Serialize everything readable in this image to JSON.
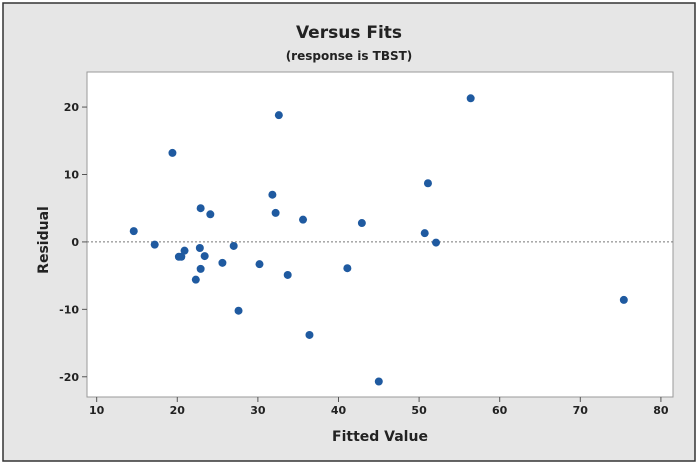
{
  "chart_data": {
    "type": "scatter",
    "title": "Versus Fits",
    "subtitle": "(response is TBST)",
    "x_label": "Fitted Value",
    "y_label": "Residual",
    "color": "#1f5aa0",
    "x": [
      14.6,
      17.2,
      19.4,
      20.2,
      20.5,
      20.9,
      22.3,
      22.8,
      22.9,
      22.9,
      23.4,
      24.1,
      25.6,
      27.0,
      27.6,
      30.2,
      31.8,
      32.2,
      32.6,
      33.7,
      35.6,
      36.4,
      41.1,
      42.9,
      45.0,
      50.7,
      51.1,
      52.1,
      56.4,
      75.4
    ],
    "values": [
      1.6,
      -0.4,
      13.2,
      -2.2,
      -2.2,
      -1.3,
      -5.6,
      -0.9,
      5.0,
      -4.0,
      -2.1,
      4.1,
      -3.1,
      -0.6,
      -10.2,
      -3.3,
      7.0,
      4.3,
      18.8,
      -4.9,
      3.3,
      -13.8,
      -3.9,
      2.8,
      -20.7,
      1.3,
      8.7,
      -0.1,
      21.3,
      -8.6
    ],
    "xlim": [
      8.8,
      81.5
    ],
    "ylim": [
      -23,
      25.2
    ],
    "xticks": [
      10,
      20,
      30,
      40,
      50,
      60,
      70,
      80
    ],
    "yticks": [
      -20,
      -10,
      0,
      10,
      20
    ],
    "reference_line": 0
  }
}
